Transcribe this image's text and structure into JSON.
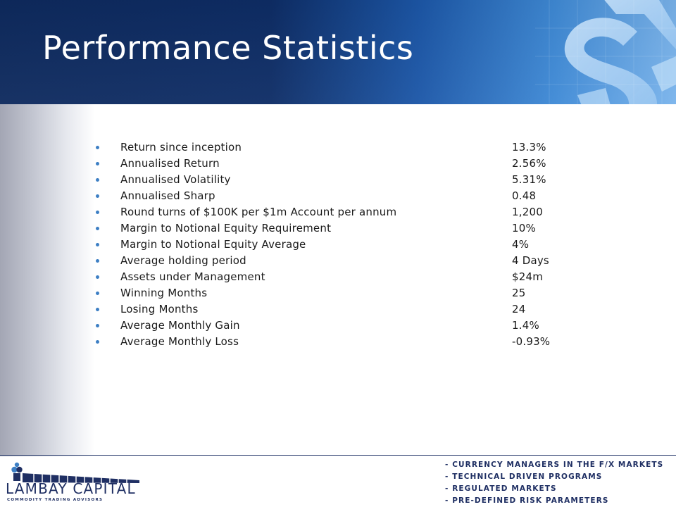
{
  "slide": {
    "title": "Performance Statistics"
  },
  "stats": [
    {
      "label": "Return since inception",
      "value": "13.3%"
    },
    {
      "label": "Annualised Return",
      "value": "2.56%"
    },
    {
      "label": "Annualised Volatility",
      "value": "5.31%"
    },
    {
      "label": "Annualised Sharp",
      "value": "0.48"
    },
    {
      "label": "Round turns of $100K per $1m Account per annum",
      "value": "1,200"
    },
    {
      "label": "Margin to Notional Equity Requirement",
      "value": "10%"
    },
    {
      "label": "Margin to Notional Equity Average",
      "value": "4%"
    },
    {
      "label": "Average holding period",
      "value": "4 Days"
    },
    {
      "label": "Assets under Management",
      "value": "$24m"
    },
    {
      "label": "Winning Months",
      "value": "25"
    },
    {
      "label": "Losing Months",
      "value": "24"
    },
    {
      "label": "Average Monthly Gain",
      "value": "1.4%"
    },
    {
      "label": "Average Monthly Loss",
      "value": "-0.93%"
    }
  ],
  "footer": {
    "logo_name": "LAMBAY CAPITAL",
    "logo_subtitle": "COMMODITY TRADING ADVISORS",
    "taglines": [
      "- CURRENCY MANAGERS IN THE F/X MARKETS",
      "- TECHNICAL DRIVEN PROGRAMS",
      "- REGULATED MARKETS",
      "- PRE-DEFINED RISK PARAMETERS"
    ]
  },
  "colors": {
    "header_dark": "#0e2a5e",
    "header_light": "#7ab4ec",
    "bullet": "#3d7fc4",
    "brand_navy": "#1f2f63"
  },
  "icons": {
    "header_graphic": "dollar-sign-icon",
    "logo_mark": "lambay-logo-icon",
    "bullet": "bullet-dot-icon"
  }
}
